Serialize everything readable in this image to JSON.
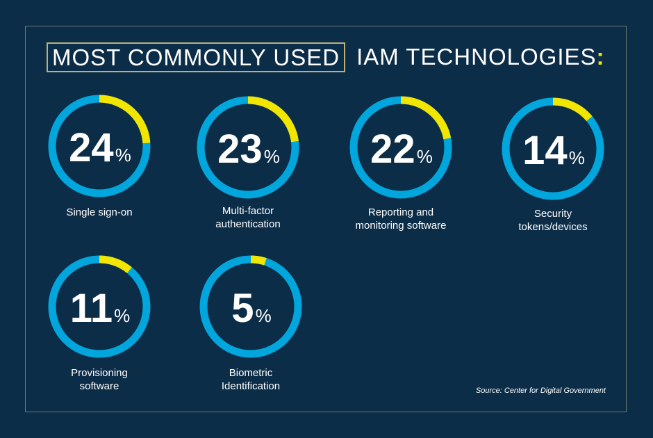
{
  "title": {
    "boxed": "MOST COMMONLY USED",
    "rest": "IAM TECHNOLOGIES",
    "colon": ":"
  },
  "source": "Source: Center for Digital Government",
  "colors": {
    "background": "#0c2d48",
    "ring": "#00a6dc",
    "highlight": "#f2e600",
    "text": "#ffffff",
    "title_box": "#b9b27a"
  },
  "chart_data": {
    "type": "pie",
    "title": "MOST COMMONLY USED IAM TECHNOLOGIES:",
    "unit": "%",
    "items": [
      {
        "label_lines": [
          "Single sign-on"
        ],
        "value": 24
      },
      {
        "label_lines": [
          "Multi-factor",
          "authentication"
        ],
        "value": 23
      },
      {
        "label_lines": [
          "Reporting and",
          "monitoring software"
        ],
        "value": 22
      },
      {
        "label_lines": [
          "Security",
          "tokens/devices"
        ],
        "value": 14
      },
      {
        "label_lines": [
          "Provisioning",
          "software"
        ],
        "value": 11
      },
      {
        "label_lines": [
          "Biometric",
          "Identification"
        ],
        "value": 5
      }
    ]
  }
}
